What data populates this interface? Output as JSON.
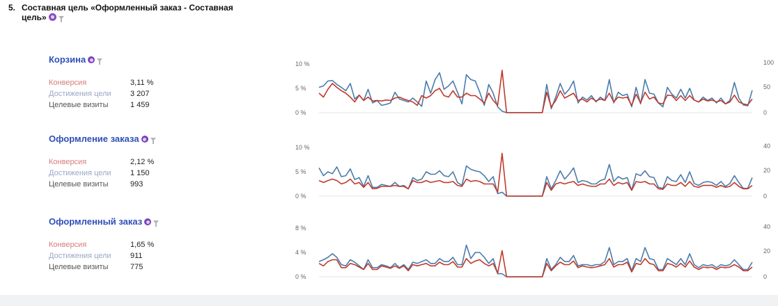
{
  "heading": {
    "number": "5.",
    "title": "Составная цель «Оформленный заказ - Составная цель»"
  },
  "goals": [
    {
      "title": "Корзина",
      "metrics": [
        {
          "label": "Конверсия",
          "value": "3,11 %"
        },
        {
          "label": "Достижения цели",
          "value": "3 207"
        },
        {
          "label": "Целевые визиты",
          "value": "1 459"
        }
      ]
    },
    {
      "title": "Оформление заказа",
      "metrics": [
        {
          "label": "Конверсия",
          "value": "2,12 %"
        },
        {
          "label": "Достижения цели",
          "value": "1 150"
        },
        {
          "label": "Целевые визиты",
          "value": "993"
        }
      ]
    },
    {
      "title": "Оформленный заказ",
      "metrics": [
        {
          "label": "Конверсия",
          "value": "1,65 %"
        },
        {
          "label": "Достижения цели",
          "value": "911"
        },
        {
          "label": "Целевые визиты",
          "value": "775"
        }
      ]
    }
  ],
  "colors": {
    "conversion": "#c0392b",
    "achievements": "#4a7bab",
    "title": "#2f4fb7",
    "badge": "#8a4bc8"
  },
  "chart_data": [
    {
      "type": "line",
      "left_axis": {
        "ticks": [
          "10 %",
          "5 %",
          "0 %"
        ],
        "ylim": [
          0,
          10
        ]
      },
      "right_axis": {
        "ticks": [
          "100",
          "50",
          "0"
        ],
        "ylim": [
          0,
          100
        ]
      },
      "grid": false,
      "series": [
        {
          "axis": "left",
          "color": "#4a7bab",
          "values": [
            5.2,
            5.5,
            6.5,
            6.6,
            5.8,
            5.2,
            4.5,
            6.0,
            2.8,
            3.6,
            2.5,
            4.8,
            2.0,
            2.5,
            1.5,
            1.7,
            2.0,
            4.2,
            2.8,
            2.5,
            2.2,
            3.0,
            2.2,
            1.3,
            6.5,
            4.0,
            6.8,
            8.2,
            4.8,
            5.5,
            6.5,
            4.2,
            1.8,
            7.8,
            6.8,
            6.5,
            4.2,
            1.5,
            5.8,
            4.0,
            1.2,
            0.3,
            0,
            0,
            0,
            0,
            0,
            0,
            0,
            0,
            0,
            5.8,
            0.8,
            3.2,
            6.0,
            3.8,
            4.8,
            6.5,
            2.0,
            3.2,
            2.6,
            3.5,
            2.2,
            3.2,
            2.5,
            6.8,
            2.0,
            4.2,
            3.5,
            3.8,
            1.2,
            5.2,
            1.8,
            6.8,
            4.0,
            3.8,
            2.0,
            1.2,
            5.2,
            3.8,
            3.0,
            4.8,
            3.0,
            5.0,
            2.6,
            2.2,
            3.2,
            2.5,
            3.0,
            2.0,
            3.0,
            1.8,
            2.5,
            6.2,
            3.0,
            1.6,
            1.4,
            4.6
          ]
        },
        {
          "axis": "left",
          "color": "#c0392b",
          "values": [
            4.0,
            3.2,
            4.8,
            6.0,
            5.2,
            4.5,
            4.0,
            3.2,
            2.2,
            3.6,
            2.5,
            3.2,
            2.4,
            2.5,
            2.4,
            2.6,
            2.5,
            3.0,
            3.2,
            2.8,
            2.5,
            2.2,
            1.5,
            3.5,
            3.0,
            3.5,
            4.5,
            5.0,
            3.5,
            3.2,
            4.5,
            3.2,
            3.2,
            4.0,
            3.5,
            3.5,
            2.8,
            2.0,
            4.0,
            2.5,
            1.5,
            8.7,
            0,
            0,
            0,
            0,
            0,
            0,
            0,
            0,
            0,
            4.2,
            1.2,
            2.5,
            4.5,
            3.0,
            3.5,
            4.0,
            2.5,
            2.8,
            2.2,
            3.0,
            2.4,
            2.8,
            2.5,
            4.0,
            2.2,
            3.2,
            3.0,
            3.2,
            1.5,
            3.8,
            2.0,
            4.2,
            2.8,
            3.2,
            2.0,
            1.8,
            3.6,
            3.5,
            2.5,
            3.5,
            2.5,
            3.5,
            2.6,
            2.2,
            2.8,
            2.4,
            2.6,
            2.2,
            2.5,
            1.8,
            2.2,
            3.6,
            2.2,
            1.8,
            1.6,
            2.8
          ]
        }
      ]
    },
    {
      "type": "line",
      "left_axis": {
        "ticks": [
          "10 %",
          "5 %",
          "0 %"
        ],
        "ylim": [
          0,
          10
        ]
      },
      "right_axis": {
        "ticks": [
          "40",
          "20",
          "0"
        ],
        "ylim": [
          0,
          40
        ]
      },
      "grid": false,
      "series": [
        {
          "axis": "left",
          "color": "#4a7bab",
          "values": [
            5.8,
            4.2,
            5.0,
            4.6,
            6.0,
            4.0,
            4.2,
            5.6,
            3.4,
            3.8,
            2.0,
            4.2,
            1.8,
            1.8,
            2.4,
            2.2,
            2.0,
            2.8,
            2.0,
            2.2,
            1.5,
            3.8,
            3.2,
            3.5,
            5.0,
            4.5,
            4.5,
            5.2,
            4.2,
            4.0,
            5.0,
            2.8,
            2.2,
            6.2,
            5.5,
            5.2,
            5.0,
            4.2,
            3.0,
            4.0,
            0.5,
            0.8,
            0,
            0,
            0,
            0,
            0,
            0,
            0,
            0,
            0,
            4.0,
            1.5,
            3.2,
            5.2,
            3.5,
            4.5,
            5.8,
            2.8,
            3.2,
            3.0,
            2.5,
            2.5,
            3.2,
            3.5,
            6.5,
            3.0,
            4.0,
            3.5,
            3.8,
            1.2,
            4.6,
            4.2,
            5.2,
            4.0,
            3.8,
            1.8,
            1.6,
            4.0,
            3.2,
            3.0,
            4.4,
            2.8,
            5.0,
            2.6,
            2.2,
            2.8,
            3.0,
            2.8,
            2.2,
            3.0,
            2.0,
            2.6,
            4.2,
            2.8,
            1.6,
            1.6,
            3.8
          ]
        },
        {
          "axis": "left",
          "color": "#c0392b",
          "values": [
            3.2,
            2.8,
            3.2,
            3.5,
            3.2,
            2.5,
            2.8,
            3.5,
            2.5,
            2.8,
            1.8,
            2.8,
            1.5,
            1.6,
            2.0,
            2.0,
            2.0,
            2.2,
            2.0,
            2.0,
            1.5,
            3.2,
            2.8,
            2.8,
            3.2,
            2.8,
            3.0,
            3.2,
            2.8,
            2.8,
            3.0,
            2.2,
            2.0,
            3.5,
            3.0,
            3.2,
            3.0,
            2.5,
            2.5,
            2.5,
            0.8,
            8.8,
            0,
            0,
            0,
            0,
            0,
            0,
            0,
            0,
            0,
            2.8,
            1.2,
            2.5,
            2.8,
            2.5,
            2.8,
            3.0,
            2.2,
            2.5,
            2.2,
            2.0,
            2.0,
            2.5,
            2.5,
            3.5,
            2.2,
            2.8,
            2.5,
            2.8,
            1.2,
            3.0,
            2.8,
            3.0,
            2.5,
            2.5,
            1.5,
            1.4,
            2.5,
            2.2,
            2.2,
            2.8,
            2.0,
            3.0,
            2.0,
            1.8,
            2.2,
            2.2,
            2.2,
            1.8,
            2.2,
            1.8,
            2.0,
            2.8,
            2.0,
            1.5,
            1.5,
            2.2
          ]
        }
      ]
    },
    {
      "type": "line",
      "left_axis": {
        "ticks": [
          "8 %",
          "4 %",
          "0 %"
        ],
        "ylim": [
          0,
          8
        ]
      },
      "right_axis": {
        "ticks": [
          "40",
          "20",
          "0"
        ],
        "ylim": [
          0,
          40
        ]
      },
      "grid": false,
      "series": [
        {
          "axis": "left",
          "color": "#4a7bab",
          "values": [
            2.5,
            2.8,
            3.2,
            3.8,
            3.2,
            2.0,
            1.8,
            2.8,
            2.4,
            1.8,
            1.2,
            2.8,
            1.5,
            1.5,
            2.0,
            1.8,
            1.5,
            2.2,
            1.5,
            2.0,
            1.2,
            2.4,
            2.2,
            2.5,
            2.8,
            2.2,
            2.2,
            3.0,
            2.5,
            2.5,
            3.2,
            2.0,
            2.0,
            5.2,
            3.0,
            4.0,
            4.0,
            3.2,
            2.2,
            3.0,
            0.5,
            0.5,
            0,
            0,
            0,
            0,
            0,
            0,
            0,
            0,
            0,
            3.0,
            1.2,
            2.0,
            3.2,
            2.5,
            2.5,
            3.5,
            1.8,
            2.0,
            2.0,
            1.8,
            2.0,
            2.0,
            2.5,
            4.8,
            2.0,
            2.5,
            2.5,
            3.0,
            1.0,
            3.0,
            2.5,
            4.8,
            3.0,
            2.8,
            1.2,
            1.2,
            3.0,
            2.5,
            2.0,
            3.0,
            2.0,
            3.8,
            2.0,
            1.5,
            2.0,
            1.8,
            2.0,
            1.5,
            2.0,
            1.8,
            2.0,
            2.8,
            2.0,
            1.2,
            1.2,
            2.4
          ]
        },
        {
          "axis": "left",
          "color": "#c0392b",
          "values": [
            2.2,
            1.8,
            2.5,
            2.8,
            2.8,
            1.5,
            1.5,
            2.2,
            2.0,
            1.6,
            1.2,
            2.2,
            1.2,
            1.2,
            1.8,
            1.6,
            1.4,
            1.8,
            1.4,
            1.8,
            1.0,
            2.0,
            1.8,
            2.0,
            2.2,
            1.8,
            1.8,
            2.4,
            2.0,
            2.0,
            2.5,
            1.6,
            1.6,
            3.0,
            2.2,
            2.6,
            2.8,
            2.2,
            1.8,
            2.2,
            0.6,
            4.3,
            0,
            0,
            0,
            0,
            0,
            0,
            0,
            0,
            0,
            2.2,
            1.0,
            1.8,
            2.4,
            2.0,
            2.0,
            2.6,
            1.5,
            1.8,
            1.6,
            1.5,
            1.6,
            1.8,
            2.0,
            3.0,
            1.6,
            2.0,
            2.0,
            2.4,
            0.8,
            2.2,
            2.0,
            3.0,
            2.2,
            2.0,
            1.0,
            1.0,
            2.2,
            2.0,
            1.6,
            2.2,
            1.6,
            2.6,
            1.6,
            1.2,
            1.6,
            1.5,
            1.6,
            1.2,
            1.6,
            1.5,
            1.6,
            2.0,
            1.6,
            1.0,
            1.0,
            1.6
          ]
        }
      ]
    }
  ]
}
